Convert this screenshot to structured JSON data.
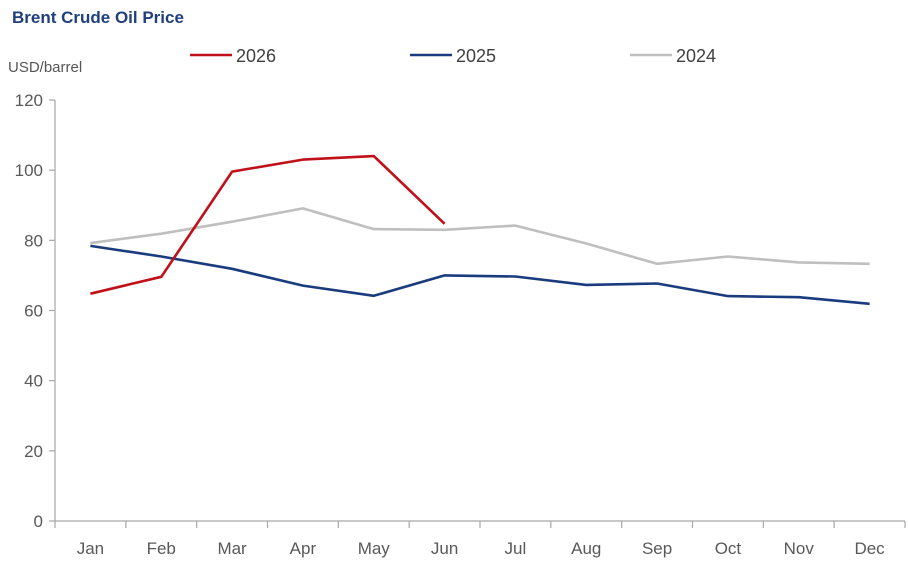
{
  "chart_data": {
    "type": "line",
    "title": "Brent Crude Oil Price",
    "ylabel": "USD/barrel",
    "xlabel": "",
    "categories": [
      "Jan",
      "Feb",
      "Mar",
      "Apr",
      "May",
      "Jun",
      "Jul",
      "Aug",
      "Sep",
      "Oct",
      "Nov",
      "Dec"
    ],
    "ylim": [
      0,
      120
    ],
    "yticks": [
      0,
      20,
      40,
      60,
      80,
      100,
      120
    ],
    "grid": false,
    "legend_position": "top",
    "series": [
      {
        "name": "2026",
        "color": "#c0101a",
        "values": [
          64.8,
          69.6,
          99.6,
          103.0,
          104.0,
          84.7,
          null,
          null,
          null,
          null,
          null,
          null
        ]
      },
      {
        "name": "2025",
        "color": "#1a3c7e",
        "values": [
          78.4,
          75.4,
          71.9,
          67.1,
          64.2,
          70.0,
          69.7,
          67.3,
          67.7,
          64.1,
          63.8,
          61.9
        ]
      },
      {
        "name": "2024",
        "color": "#bfbfbf",
        "values": [
          79.2,
          81.9,
          85.3,
          89.1,
          83.2,
          83.0,
          84.2,
          79.1,
          73.3,
          75.4,
          73.7,
          73.3
        ]
      }
    ]
  }
}
